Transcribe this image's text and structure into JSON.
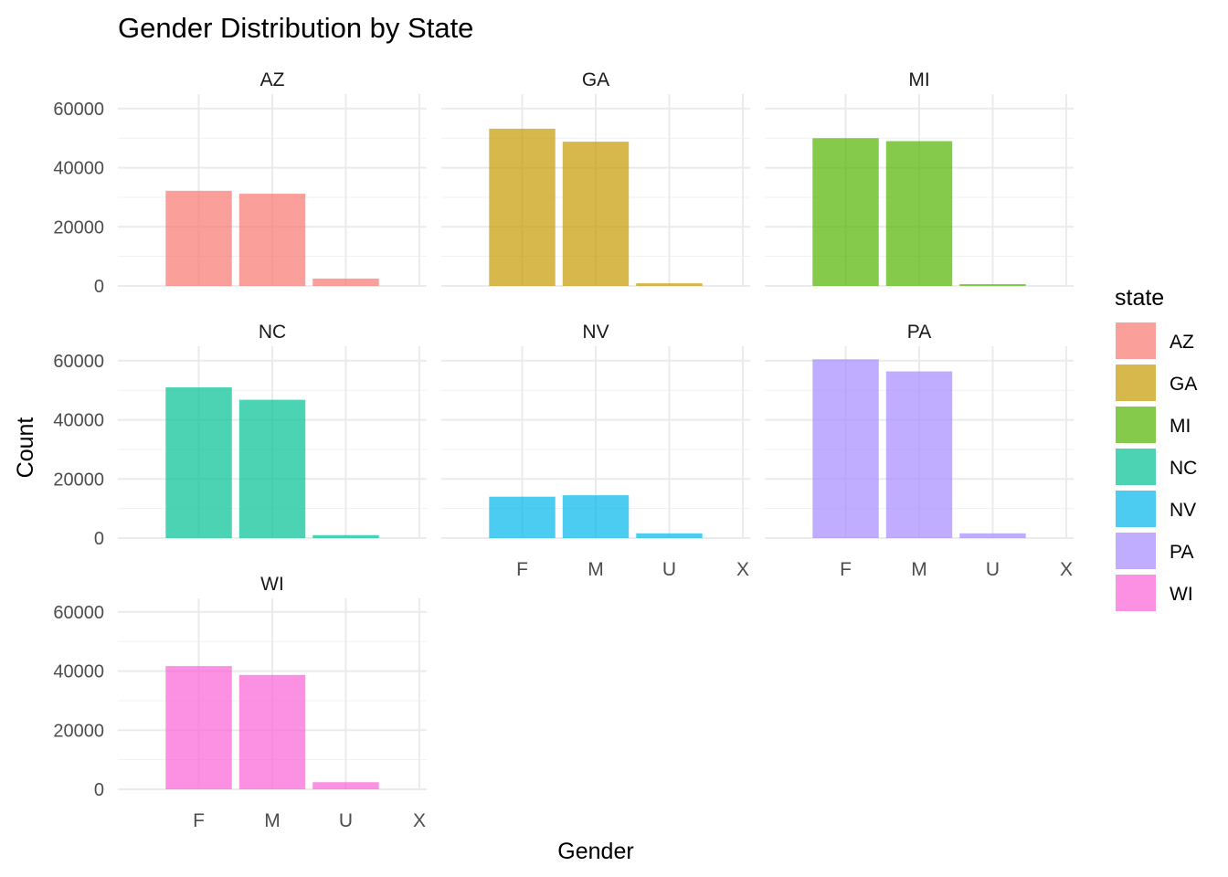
{
  "chart_data": {
    "type": "bar",
    "title": "Gender Distribution by State",
    "xlabel": "Gender",
    "ylabel": "Count",
    "categories": [
      "F",
      "M",
      "U",
      "X"
    ],
    "ylim": [
      0,
      63000
    ],
    "yticks": [
      0,
      20000,
      40000,
      60000
    ],
    "grid": true,
    "legend": {
      "title": "state",
      "placement": "right"
    },
    "series": [
      {
        "name": "AZ",
        "color": "#F8766D",
        "values": [
          32200,
          31200,
          2500,
          0
        ]
      },
      {
        "name": "GA",
        "color": "#C49A00",
        "values": [
          53200,
          48800,
          900,
          0
        ]
      },
      {
        "name": "MI",
        "color": "#53B400",
        "values": [
          50000,
          49000,
          600,
          0
        ]
      },
      {
        "name": "NC",
        "color": "#00C094",
        "values": [
          51000,
          46800,
          1000,
          0
        ]
      },
      {
        "name": "NV",
        "color": "#00B6EB",
        "values": [
          14000,
          14500,
          1600,
          0
        ]
      },
      {
        "name": "PA",
        "color": "#A58AFF",
        "values": [
          60500,
          56400,
          1600,
          0
        ]
      },
      {
        "name": "WI",
        "color": "#FB61D7",
        "values": [
          41700,
          38700,
          2400,
          0
        ]
      }
    ]
  }
}
